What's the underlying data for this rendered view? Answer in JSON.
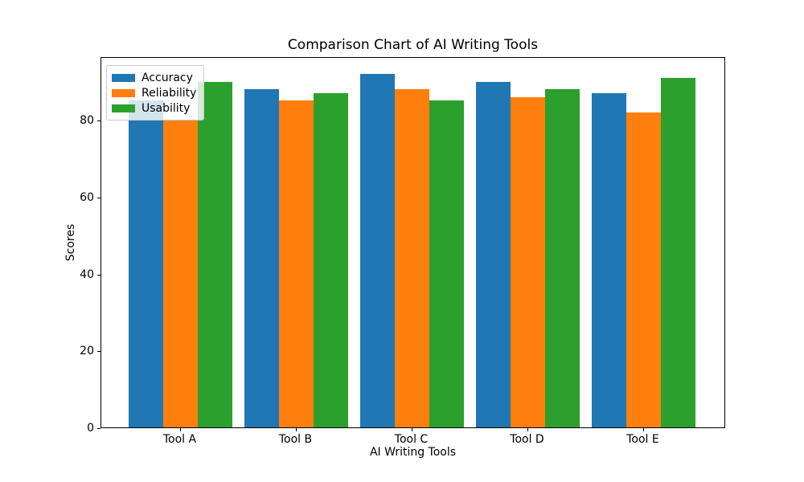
{
  "chart_data": {
    "type": "bar",
    "title": "Comparison Chart of AI Writing Tools",
    "xlabel": "AI Writing Tools",
    "ylabel": "Scores",
    "categories": [
      "Tool A",
      "Tool B",
      "Tool C",
      "Tool D",
      "Tool E"
    ],
    "series": [
      {
        "name": "Accuracy",
        "color": "#1f77b4",
        "values": [
          85,
          88,
          92,
          90,
          87
        ]
      },
      {
        "name": "Reliability",
        "color": "#ff7f0e",
        "values": [
          80,
          85,
          88,
          86,
          82
        ]
      },
      {
        "name": "Usability",
        "color": "#2ca02c",
        "values": [
          90,
          87,
          85,
          88,
          91
        ]
      }
    ],
    "ylim": [
      0,
      96.6
    ],
    "yticks": [
      0,
      20,
      40,
      60,
      80
    ],
    "grid": false,
    "legend_position": "upper left",
    "background": "#ffffff",
    "text_color": "#000000",
    "spine_color": "#000000"
  }
}
